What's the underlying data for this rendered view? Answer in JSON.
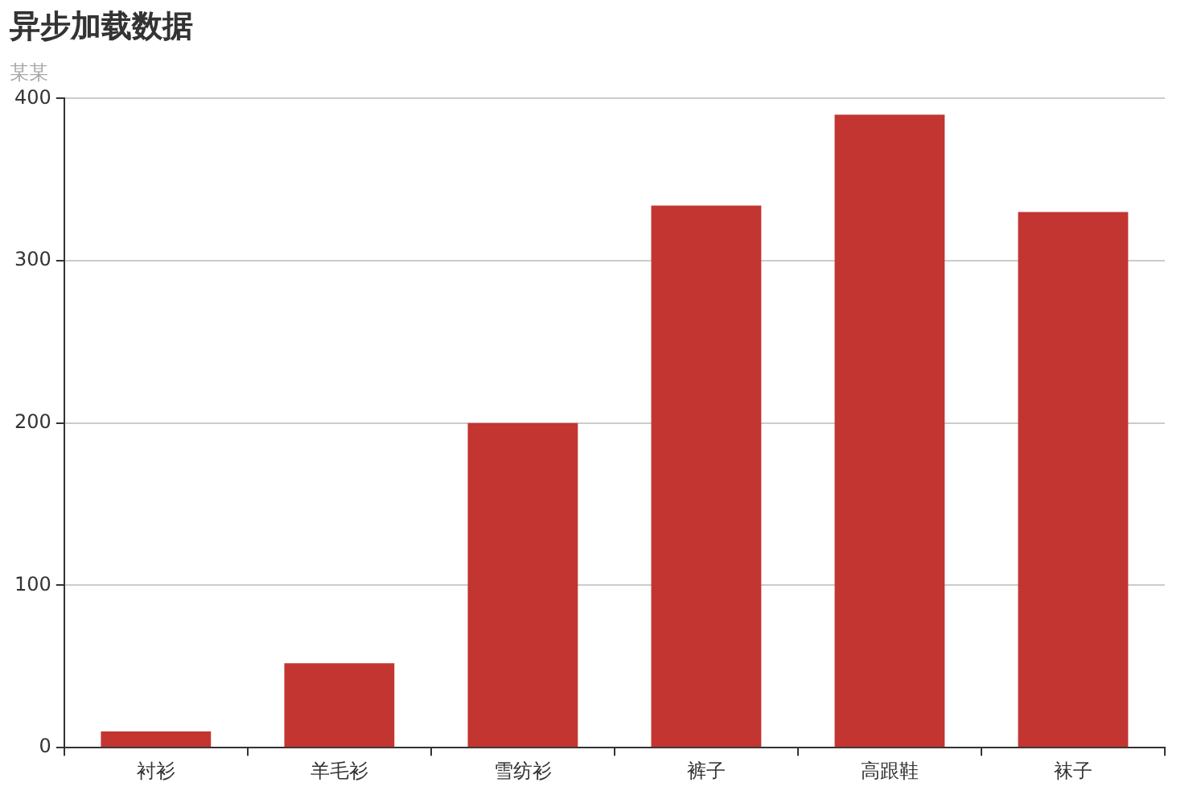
{
  "chart_data": {
    "type": "bar",
    "title": "异步加载数据",
    "subtitle": "某某",
    "categories": [
      "衬衫",
      "羊毛衫",
      "雪纺衫",
      "裤子",
      "高跟鞋",
      "袜子"
    ],
    "values": [
      10,
      52,
      200,
      334,
      390,
      330
    ],
    "color": "#c23531",
    "ylim": [
      0,
      400
    ],
    "yticks": [
      0,
      100,
      200,
      300,
      400
    ],
    "grid": "y",
    "legend": false
  }
}
